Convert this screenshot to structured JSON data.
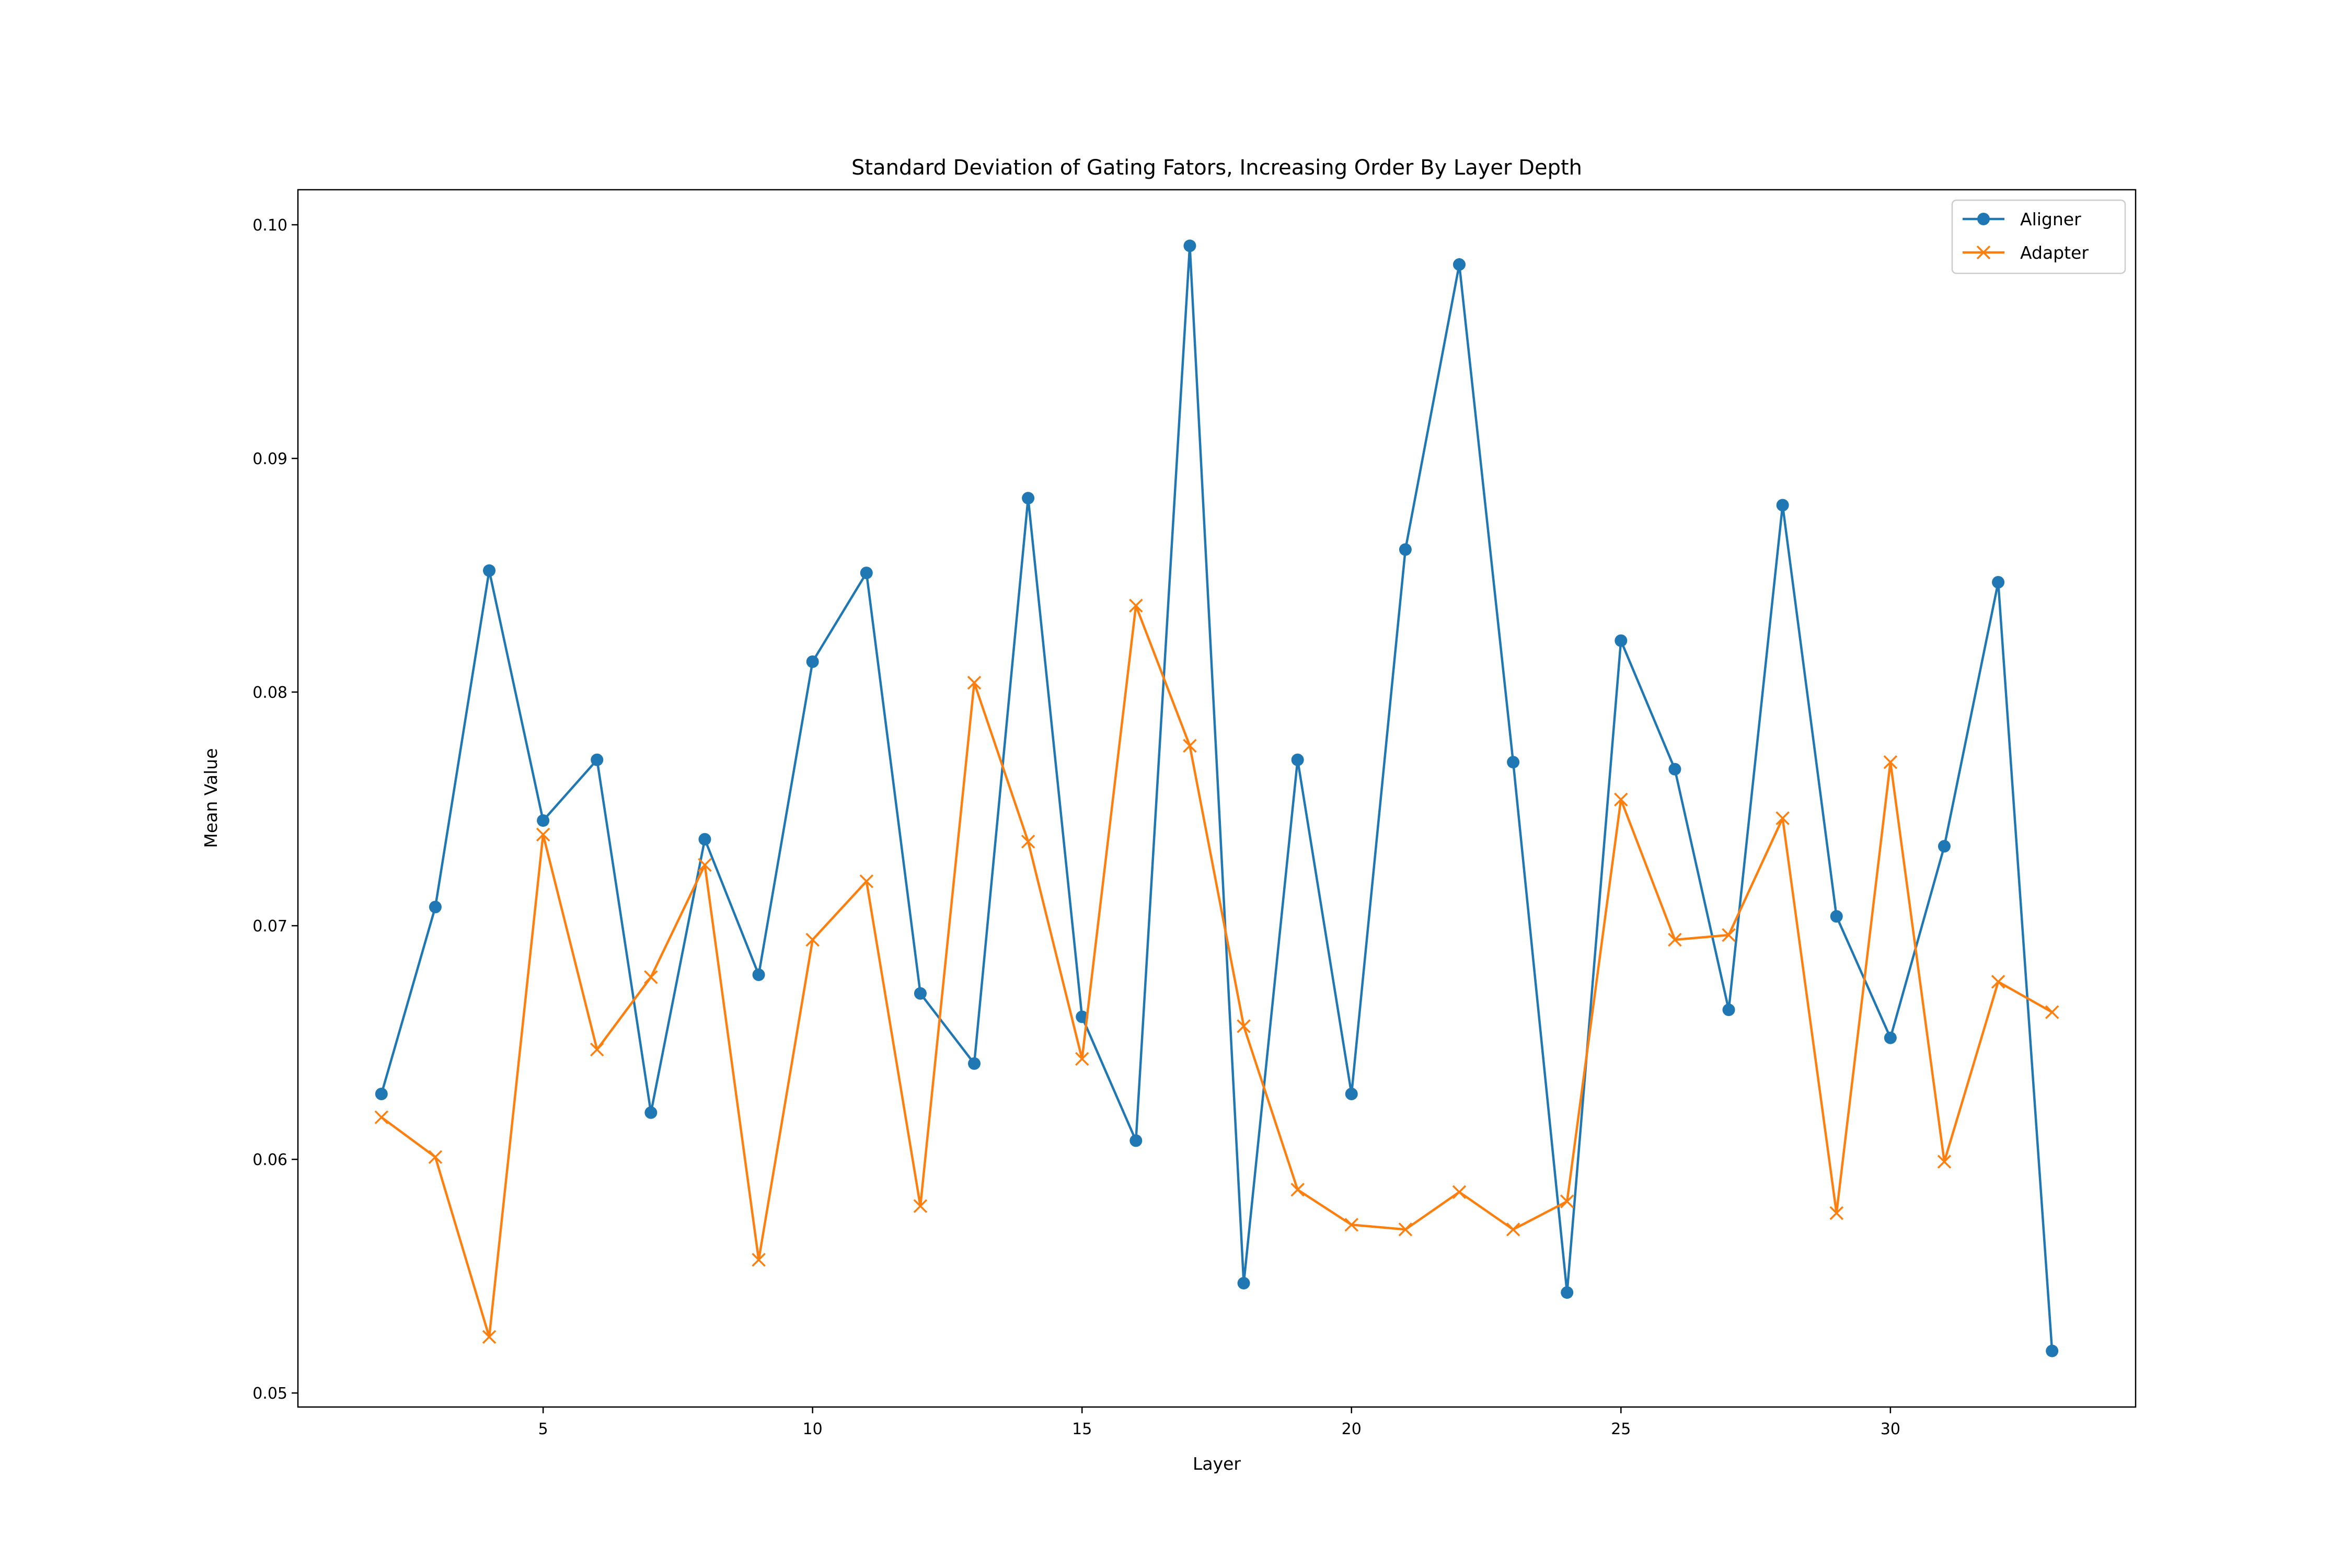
{
  "chart_data": {
    "type": "line",
    "title": "Standard Deviation of Gating Fators, Increasing Order By Layer Depth",
    "xlabel": "Layer",
    "ylabel": "Mean Value",
    "xlim": [
      0.45,
      34.55
    ],
    "ylim": [
      0.0494,
      0.1015
    ],
    "xticks": [
      5,
      10,
      15,
      20,
      25,
      30
    ],
    "yticks": [
      0.05,
      0.06,
      0.07,
      0.08,
      0.09,
      0.1
    ],
    "ytick_labels": [
      "0.05",
      "0.06",
      "0.07",
      "0.08",
      "0.09",
      "0.10"
    ],
    "grid": false,
    "legend_position": "top-right",
    "x": [
      2,
      3,
      4,
      5,
      6,
      7,
      8,
      9,
      10,
      11,
      12,
      13,
      14,
      15,
      16,
      17,
      18,
      19,
      20,
      21,
      22,
      23,
      24,
      25,
      26,
      27,
      28,
      29,
      30,
      31,
      32,
      33
    ],
    "series": [
      {
        "name": "Aligner",
        "color": "#1f77b4",
        "marker": "circle",
        "values": [
          0.0628,
          0.0708,
          0.0852,
          0.0745,
          0.0771,
          0.062,
          0.0737,
          0.0679,
          0.0813,
          0.0851,
          0.0671,
          0.0641,
          0.0883,
          0.0661,
          0.0608,
          0.0991,
          0.0547,
          0.0771,
          0.0628,
          0.0861,
          0.0983,
          0.077,
          0.0543,
          0.0822,
          0.0767,
          0.0664,
          0.088,
          0.0704,
          0.0652,
          0.0734,
          0.0847,
          0.0518
        ]
      },
      {
        "name": "Adapter",
        "color": "#ff7f0e",
        "marker": "x",
        "values": [
          0.0618,
          0.0601,
          0.0524,
          0.0739,
          0.0647,
          0.0678,
          0.0726,
          0.0557,
          0.0694,
          0.0719,
          0.058,
          0.0804,
          0.0736,
          0.0643,
          0.0837,
          0.0777,
          0.0657,
          0.0587,
          0.0572,
          0.057,
          0.0586,
          0.057,
          0.0582,
          0.0754,
          0.0694,
          0.0696,
          0.0746,
          0.0577,
          0.077,
          0.0599,
          0.0676,
          0.0663
        ]
      }
    ]
  }
}
